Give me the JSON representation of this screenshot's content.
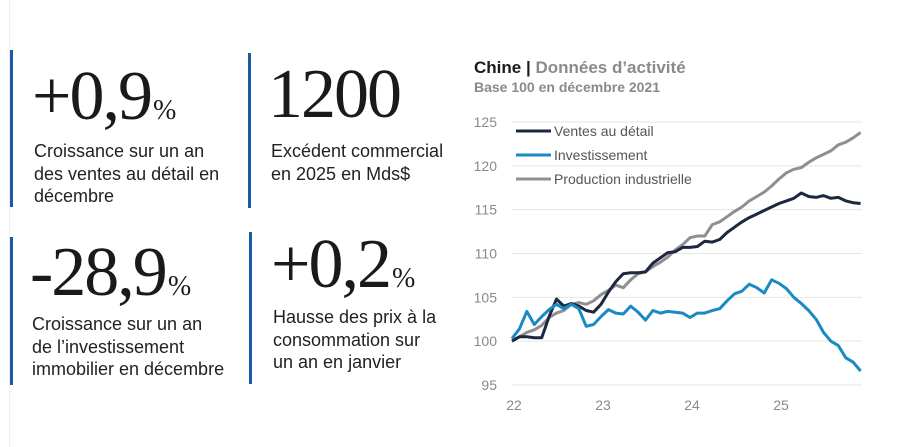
{
  "kpis": [
    {
      "value": "+0,9",
      "unit": "%",
      "description": [
        "Croissance sur un an",
        "des ventes au détail en",
        "décembre"
      ]
    },
    {
      "value": "1200",
      "unit": "",
      "description": [
        "Excédent commercial",
        "en 2025 en Mds$"
      ]
    },
    {
      "value": "-28,9",
      "unit": "%",
      "description": [
        "Croissance sur un an",
        "de l’investissement",
        "immobilier en décembre"
      ]
    },
    {
      "value": "+0,2",
      "unit": "%",
      "description": [
        "Hausse des prix à la",
        "consommation sur",
        "un an en janvier"
      ]
    }
  ],
  "colors": {
    "accent_bar": "#1c5aa6",
    "ventes": "#1e2740",
    "investissement": "#1a8ac4",
    "production": "#8f8f8f"
  },
  "chart_data": {
    "type": "line",
    "title": "Chine",
    "title_secondary": "Données d’activité",
    "subtitle": "Base 100 en décembre 2021",
    "xlabel": "",
    "ylabel": "",
    "x_ticks": [
      "22",
      "23",
      "24",
      "25"
    ],
    "y_ticks": [
      95,
      100,
      105,
      110,
      115,
      120,
      125
    ],
    "ylim": [
      95,
      125
    ],
    "grid": "horizontal",
    "legend": "top-left",
    "frequency": "monthly, Jan 2022 – Dec 2025",
    "series": [
      {
        "name": "Ventes au détail",
        "color": "#1e2740",
        "values": [
          100,
          100.5,
          100.5,
          100.4,
          100.4,
          102.8,
          104.8,
          104,
          104.3,
          104,
          103.5,
          103.3,
          104.2,
          105.6,
          106.8,
          107.7,
          107.8,
          107.8,
          107.9,
          108.9,
          109.5,
          110.1,
          110.2,
          110.7,
          110.7,
          110.8,
          111.4,
          111.3,
          111.6,
          112.4,
          113,
          113.6,
          114.1,
          114.5,
          114.9,
          115.3,
          115.7,
          116,
          116.3,
          116.9,
          116.5,
          116.4,
          116.6,
          116.3,
          116.4,
          116,
          115.8,
          115.7
        ]
      },
      {
        "name": "Investissement",
        "color": "#1a8ac4",
        "values": [
          100.3,
          101.4,
          103.4,
          101.9,
          102.8,
          103.6,
          104.2,
          103.7,
          104.2,
          103.7,
          101.7,
          101.9,
          102.8,
          103.6,
          103.2,
          103.1,
          104,
          103.3,
          102.4,
          103.5,
          103.2,
          103.4,
          103.3,
          103.2,
          102.7,
          103.2,
          103.2,
          103.5,
          103.7,
          104.6,
          105.4,
          105.7,
          106.5,
          106.1,
          105.5,
          107,
          106.6,
          106,
          105,
          104.3,
          103.5,
          102.5,
          101,
          100,
          99.5,
          98.1,
          97.6,
          96.6
        ]
      },
      {
        "name": "Production industrielle",
        "color": "#8f8f8f",
        "values": [
          100.1,
          100.5,
          101,
          101.3,
          101.8,
          102.7,
          103.2,
          103.5,
          104.2,
          104.4,
          104.2,
          104.6,
          105.3,
          105.8,
          106.4,
          106.1,
          107,
          107.7,
          107.9,
          108.5,
          109,
          109.6,
          110.4,
          111,
          111.8,
          112,
          112,
          113.3,
          113.6,
          114.2,
          114.8,
          115.3,
          116,
          116.5,
          117,
          117.7,
          118.5,
          119.2,
          119.6,
          119.8,
          120.4,
          120.9,
          121.3,
          121.7,
          122.4,
          122.7,
          123.2,
          123.8
        ]
      }
    ]
  }
}
